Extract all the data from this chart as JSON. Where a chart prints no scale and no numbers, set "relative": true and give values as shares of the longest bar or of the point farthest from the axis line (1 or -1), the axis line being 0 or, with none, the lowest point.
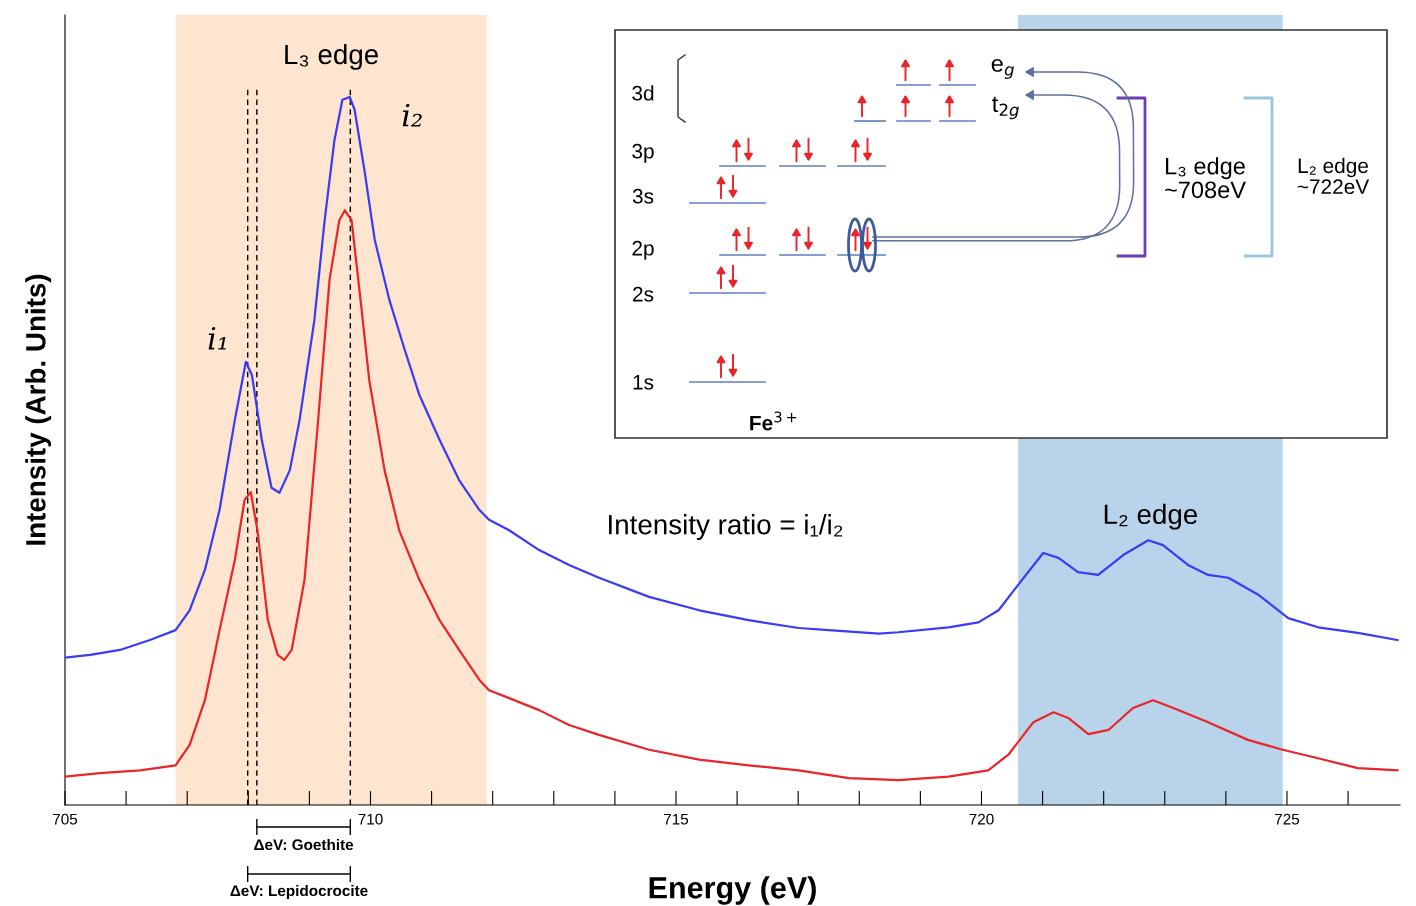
{
  "chart_data": {
    "type": "line",
    "relative": true,
    "xlabel": "Energy (eV)",
    "ylabel": "Intensity (Arb. Units)",
    "xlim": [
      705,
      726.85
    ],
    "xticks": [
      705,
      {
        "value": 706,
        "label": null
      },
      {
        "value": 707,
        "label": null
      },
      {
        "value": 708,
        "label": null
      },
      {
        "value": 709,
        "label": null
      },
      710,
      {
        "value": 711,
        "label": null
      },
      {
        "value": 712,
        "label": null
      },
      {
        "value": 713,
        "label": null
      },
      {
        "value": 714,
        "label": null
      },
      715,
      {
        "value": 716,
        "label": null
      },
      {
        "value": 717,
        "label": null
      },
      {
        "value": 718,
        "label": null
      },
      {
        "value": 719,
        "label": null
      },
      720,
      {
        "value": 721,
        "label": null
      },
      {
        "value": 722,
        "label": null
      },
      {
        "value": 723,
        "label": null
      },
      {
        "value": 724,
        "label": null
      },
      725,
      {
        "value": 726,
        "label": null
      }
    ],
    "grid": false,
    "series": [
      {
        "color": "#3b3bf5",
        "x": [
          705.0,
          705.41,
          705.9,
          706.39,
          706.81,
          707.04,
          707.29,
          707.53,
          707.78,
          707.96,
          708.06,
          708.22,
          708.38,
          708.51,
          708.68,
          708.84,
          709.08,
          709.25,
          709.41,
          709.54,
          709.66,
          709.74,
          709.9,
          710.07,
          710.31,
          710.56,
          710.8,
          711.13,
          711.45,
          711.78,
          711.94,
          712.27,
          712.76,
          713.25,
          713.74,
          714.56,
          715.38,
          716.19,
          717.01,
          717.5,
          718.32,
          718.64,
          719.46,
          719.95,
          720.28,
          720.6,
          721.01,
          721.26,
          721.58,
          721.91,
          722.32,
          722.73,
          722.97,
          723.38,
          723.71,
          724.04,
          724.53,
          725.02,
          725.51,
          726.16,
          726.81
        ],
        "values": [
          0.208,
          0.212,
          0.219,
          0.233,
          0.247,
          0.275,
          0.332,
          0.417,
          0.544,
          0.626,
          0.607,
          0.516,
          0.448,
          0.441,
          0.473,
          0.544,
          0.684,
          0.826,
          0.939,
          0.996,
          1,
          0.982,
          0.897,
          0.798,
          0.713,
          0.643,
          0.579,
          0.516,
          0.459,
          0.417,
          0.403,
          0.388,
          0.36,
          0.339,
          0.321,
          0.294,
          0.275,
          0.261,
          0.25,
          0.247,
          0.242,
          0.244,
          0.251,
          0.258,
          0.275,
          0.311,
          0.356,
          0.349,
          0.329,
          0.325,
          0.353,
          0.374,
          0.367,
          0.339,
          0.325,
          0.321,
          0.297,
          0.264,
          0.251,
          0.243,
          0.233
        ]
      },
      {
        "color": "#e8262a",
        "x": [
          705.0,
          705.57,
          706.23,
          706.81,
          707.04,
          707.29,
          707.53,
          707.78,
          707.94,
          708.04,
          708.15,
          708.32,
          708.48,
          708.59,
          708.71,
          708.92,
          709.13,
          709.33,
          709.49,
          709.58,
          709.69,
          709.82,
          709.98,
          710.23,
          710.47,
          710.8,
          711.13,
          711.45,
          711.78,
          711.94,
          712.27,
          712.76,
          713.25,
          713.74,
          714.56,
          715.38,
          716.19,
          717.01,
          717.83,
          718.64,
          719.46,
          720.11,
          720.44,
          720.85,
          721.18,
          721.42,
          721.75,
          722.08,
          722.48,
          722.81,
          723.14,
          723.71,
          724.36,
          724.93,
          725.51,
          726.16,
          726.81
        ],
        "values": [
          0.04,
          0.045,
          0.049,
          0.056,
          0.085,
          0.148,
          0.247,
          0.346,
          0.431,
          0.442,
          0.388,
          0.261,
          0.212,
          0.205,
          0.219,
          0.318,
          0.53,
          0.742,
          0.826,
          0.84,
          0.826,
          0.727,
          0.6,
          0.473,
          0.388,
          0.318,
          0.261,
          0.219,
          0.177,
          0.162,
          0.151,
          0.134,
          0.113,
          0.099,
          0.078,
          0.064,
          0.056,
          0.049,
          0.038,
          0.035,
          0.04,
          0.049,
          0.071,
          0.117,
          0.131,
          0.123,
          0.1,
          0.106,
          0.137,
          0.148,
          0.137,
          0.117,
          0.092,
          0.078,
          0.066,
          0.052,
          0.049
        ]
      }
    ],
    "bands": [
      {
        "axis": "x",
        "from": 706.81,
        "to": 711.9,
        "label": "L₃ edge",
        "color": "#fde5cf"
      },
      {
        "axis": "x",
        "from": 720.6,
        "to": 724.93,
        "label": "L₂ edge",
        "color": "#b8d3ea"
      }
    ],
    "ref_lines": [
      {
        "axis": "x",
        "value": 707.99,
        "color": "#000000",
        "line_style": "dashed"
      },
      {
        "axis": "x",
        "value": 708.14,
        "color": "#000000",
        "line_style": "dashed"
      },
      {
        "axis": "x",
        "value": 709.67,
        "color": "#000000",
        "line_style": "dashed"
      }
    ],
    "annotations": [
      {
        "text": "i₁",
        "x": 707.96,
        "y": 0.626
      },
      {
        "text": "i₂",
        "x": 709.66,
        "y": 1
      },
      "Intensity ratio = i₁/i₂",
      "ΔeV: Goethite",
      "ΔeV: Lepidocrocite",
      "3d",
      "3p",
      "3s",
      "2p",
      "2s",
      "1s",
      "Fe$^{3+}$",
      "e$_{g}$",
      "t$_{2g}$",
      "L₃ edge\n~708eV",
      "L₂ edge\n~722eV"
    ]
  }
}
